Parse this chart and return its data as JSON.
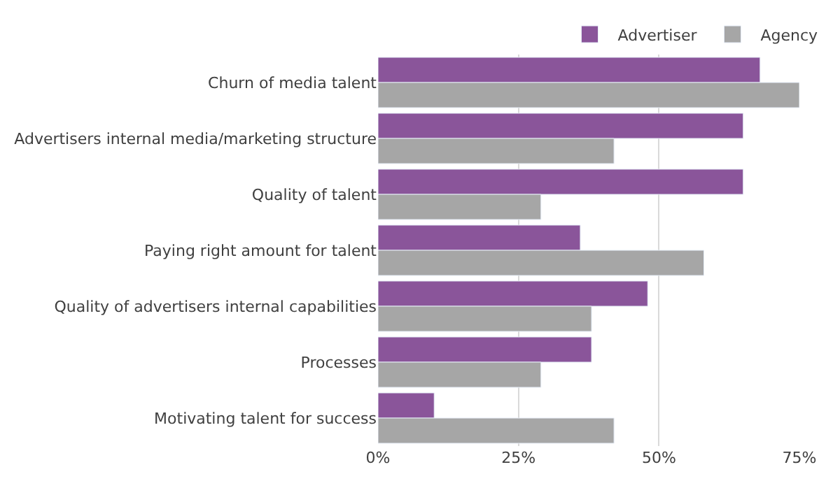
{
  "chart_data": {
    "type": "bar",
    "orientation": "horizontal",
    "categories": [
      "Churn of media talent",
      "Advertisers internal media/marketing structure",
      "Quality of talent",
      "Paying right amount for talent",
      "Quality of advertisers internal capabilities",
      "Processes",
      "Motivating talent for success"
    ],
    "series": [
      {
        "name": "Advertiser",
        "color": "#8a559a",
        "values": [
          68,
          65,
          65,
          36,
          48,
          38,
          10
        ]
      },
      {
        "name": "Agency",
        "color": "#a6a6a6",
        "values": [
          75,
          42,
          29,
          58,
          38,
          29,
          42
        ]
      }
    ],
    "xlim": [
      0,
      75
    ],
    "xticks": [
      {
        "value": 0,
        "label": "0%"
      },
      {
        "value": 25,
        "label": "25%"
      },
      {
        "value": 50,
        "label": "50%"
      },
      {
        "value": 75,
        "label": "75%"
      }
    ],
    "grid": "x",
    "legend": "top"
  }
}
